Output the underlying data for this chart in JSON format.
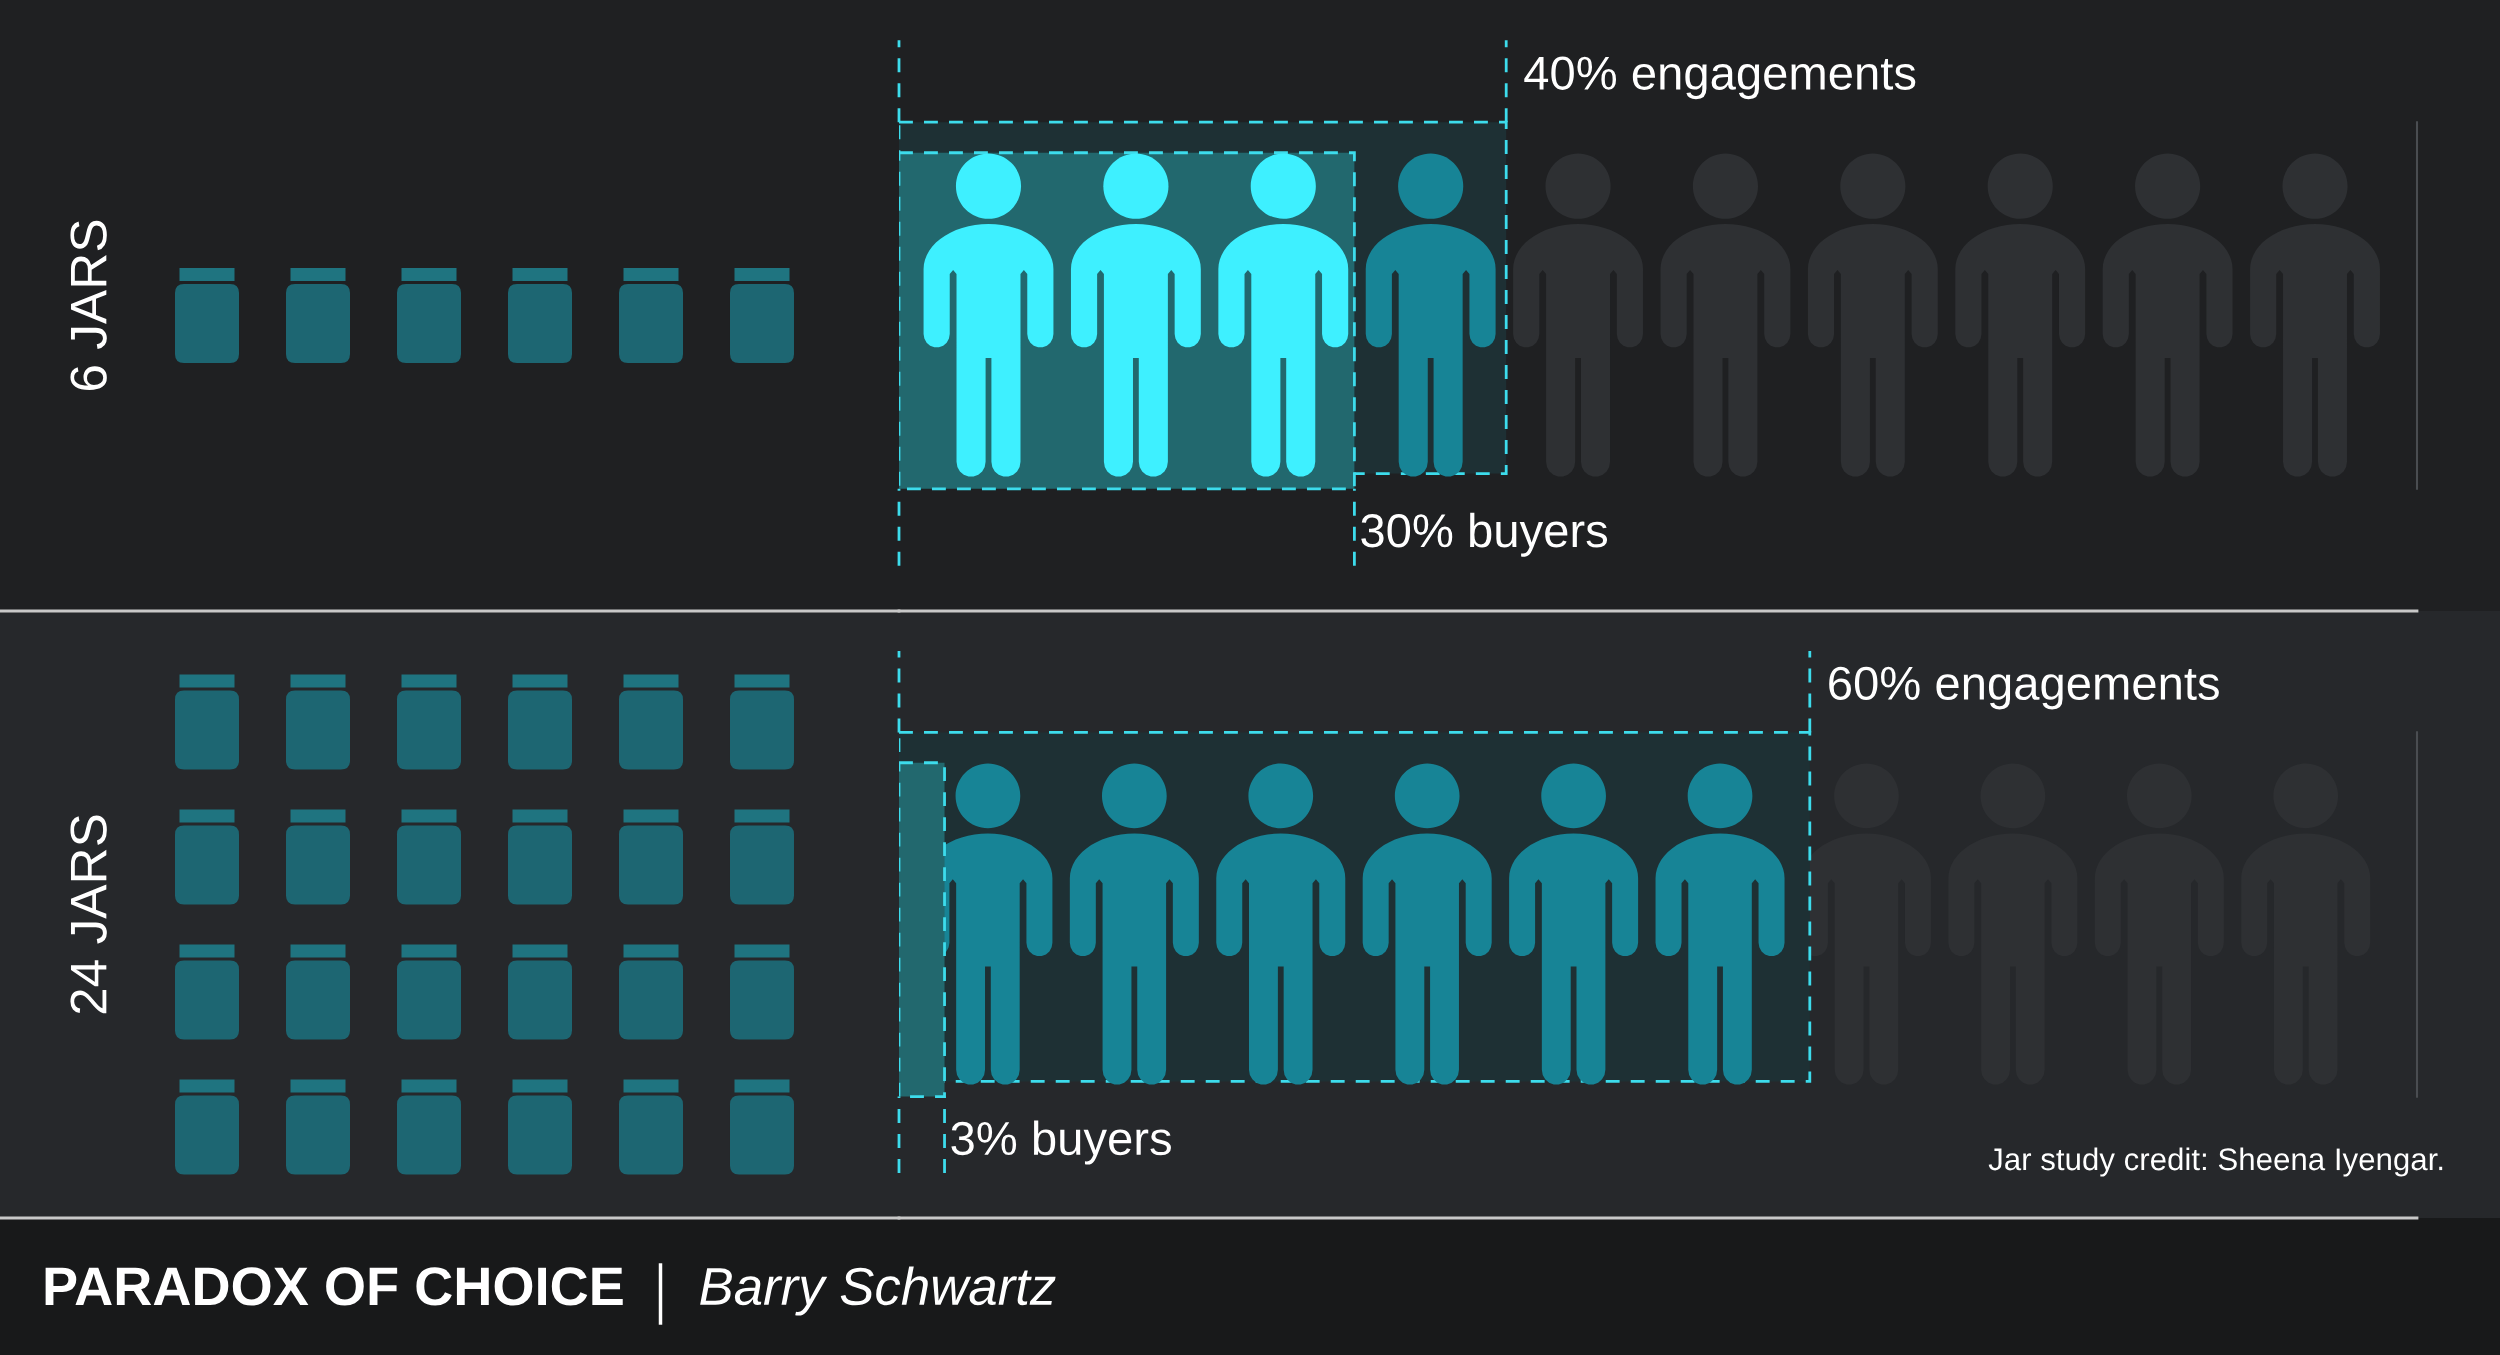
{
  "chart_data": [
    {
      "type": "bar",
      "orientation": "horizontal",
      "categories": [
        "6 JARS"
      ],
      "series": [
        {
          "color": "#1e3034",
          "values": [
            40
          ],
          "value_labels": [
            "40% engagements"
          ]
        },
        {
          "color": "#22686e",
          "values": [
            30
          ],
          "value_labels": [
            "30% buyers"
          ]
        }
      ],
      "xlim": [
        0,
        100
      ],
      "tick_labels": "y"
    },
    {
      "type": "bar",
      "orientation": "horizontal",
      "categories": [
        "24 JARS"
      ],
      "series": [
        {
          "color": "#1e3034",
          "values": [
            60
          ],
          "value_labels": [
            "60% engagements"
          ]
        },
        {
          "color": "#22686e",
          "values": [
            3
          ],
          "value_labels": [
            "3% buyers"
          ]
        }
      ],
      "xlim": [
        0,
        100
      ],
      "tick_labels": "y",
      "annotations": [
        "Jar study credit: Sheena Iyengar."
      ]
    },
    {
      "type": "other",
      "title": "PARADOX OF CHOICE",
      "subtitle": "Barry Schwartz"
    }
  ]
}
